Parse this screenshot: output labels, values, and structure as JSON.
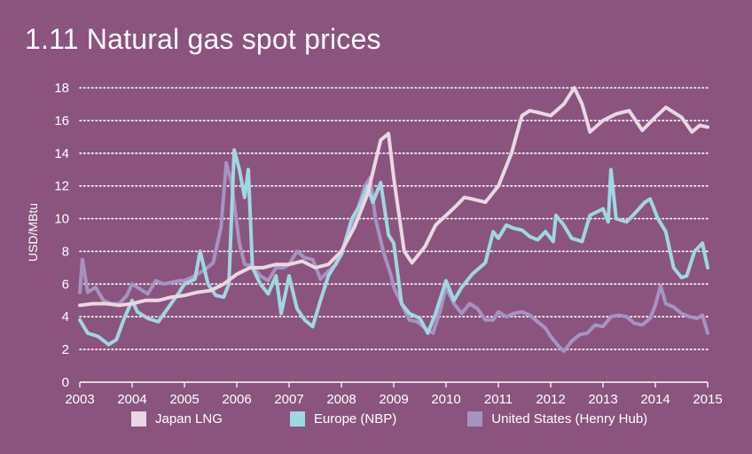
{
  "title": "1.11 Natural gas spot prices",
  "colors": {
    "background": "#8a547e",
    "japan": "#ead7e3",
    "europe": "#9ed8e2",
    "us": "#a793c2",
    "grid": "#ffffff"
  },
  "chart_data": {
    "type": "line",
    "title": "1.11 Natural gas spot prices",
    "xlabel": "",
    "ylabel": "USD/MBtu",
    "xlim": [
      2003,
      2015
    ],
    "ylim": [
      0,
      18
    ],
    "x_ticks": [
      "2003",
      "2004",
      "2005",
      "2006",
      "2007",
      "2008",
      "2009",
      "2010",
      "2011",
      "2012",
      "2013",
      "2014",
      "2015"
    ],
    "y_ticks": [
      "0",
      "2",
      "4",
      "6",
      "8",
      "10",
      "12",
      "14",
      "16",
      "18"
    ],
    "grid": "horizontal dotted",
    "legend_position": "bottom",
    "series": [
      {
        "name": "Japan LNG",
        "color": "#ead7e3",
        "points": [
          [
            2003.0,
            4.7
          ],
          [
            2003.25,
            4.8
          ],
          [
            2003.5,
            4.8
          ],
          [
            2003.75,
            4.7
          ],
          [
            2004.0,
            4.8
          ],
          [
            2004.25,
            5.0
          ],
          [
            2004.5,
            5.0
          ],
          [
            2004.75,
            5.2
          ],
          [
            2005.0,
            5.3
          ],
          [
            2005.25,
            5.5
          ],
          [
            2005.5,
            5.6
          ],
          [
            2005.75,
            6.0
          ],
          [
            2006.0,
            6.6
          ],
          [
            2006.25,
            7.0
          ],
          [
            2006.5,
            7.0
          ],
          [
            2006.75,
            7.2
          ],
          [
            2007.0,
            7.2
          ],
          [
            2007.25,
            7.4
          ],
          [
            2007.5,
            7.0
          ],
          [
            2007.75,
            7.2
          ],
          [
            2008.0,
            8.0
          ],
          [
            2008.25,
            9.5
          ],
          [
            2008.5,
            11.5
          ],
          [
            2008.75,
            14.8
          ],
          [
            2008.9,
            15.2
          ],
          [
            2009.0,
            12.5
          ],
          [
            2009.2,
            8.0
          ],
          [
            2009.35,
            7.3
          ],
          [
            2009.6,
            8.3
          ],
          [
            2009.8,
            9.6
          ],
          [
            2010.0,
            10.2
          ],
          [
            2010.2,
            10.8
          ],
          [
            2010.35,
            11.3
          ],
          [
            2010.5,
            11.2
          ],
          [
            2010.75,
            11.0
          ],
          [
            2011.0,
            12.0
          ],
          [
            2011.25,
            14.0
          ],
          [
            2011.45,
            16.3
          ],
          [
            2011.6,
            16.6
          ],
          [
            2011.75,
            16.5
          ],
          [
            2012.0,
            16.3
          ],
          [
            2012.25,
            17.0
          ],
          [
            2012.45,
            18.0
          ],
          [
            2012.6,
            17.0
          ],
          [
            2012.75,
            15.3
          ],
          [
            2013.0,
            16.0
          ],
          [
            2013.25,
            16.4
          ],
          [
            2013.5,
            16.6
          ],
          [
            2013.75,
            15.4
          ],
          [
            2014.0,
            16.2
          ],
          [
            2014.2,
            16.8
          ],
          [
            2014.5,
            16.2
          ],
          [
            2014.7,
            15.3
          ],
          [
            2014.85,
            15.7
          ],
          [
            2015.0,
            15.6
          ]
        ]
      },
      {
        "name": "Europe (NBP)",
        "color": "#9ed8e2",
        "points": [
          [
            2003.0,
            3.8
          ],
          [
            2003.15,
            3.0
          ],
          [
            2003.35,
            2.8
          ],
          [
            2003.55,
            2.3
          ],
          [
            2003.7,
            2.6
          ],
          [
            2003.85,
            3.9
          ],
          [
            2004.0,
            5.0
          ],
          [
            2004.1,
            4.3
          ],
          [
            2004.3,
            3.9
          ],
          [
            2004.5,
            3.7
          ],
          [
            2004.7,
            4.6
          ],
          [
            2004.9,
            5.5
          ],
          [
            2005.0,
            6.0
          ],
          [
            2005.2,
            6.3
          ],
          [
            2005.3,
            8.0
          ],
          [
            2005.45,
            6.0
          ],
          [
            2005.6,
            5.3
          ],
          [
            2005.75,
            5.2
          ],
          [
            2005.85,
            6.0
          ],
          [
            2005.95,
            14.2
          ],
          [
            2006.05,
            13.0
          ],
          [
            2006.15,
            11.3
          ],
          [
            2006.22,
            13.0
          ],
          [
            2006.3,
            7.0
          ],
          [
            2006.45,
            6.0
          ],
          [
            2006.6,
            5.4
          ],
          [
            2006.75,
            6.5
          ],
          [
            2006.85,
            4.2
          ],
          [
            2007.0,
            6.5
          ],
          [
            2007.15,
            4.5
          ],
          [
            2007.3,
            3.8
          ],
          [
            2007.45,
            3.4
          ],
          [
            2007.6,
            5.0
          ],
          [
            2007.75,
            6.5
          ],
          [
            2008.0,
            7.8
          ],
          [
            2008.2,
            10.0
          ],
          [
            2008.35,
            10.8
          ],
          [
            2008.5,
            12.0
          ],
          [
            2008.6,
            11.0
          ],
          [
            2008.75,
            12.2
          ],
          [
            2008.9,
            9.0
          ],
          [
            2009.0,
            8.5
          ],
          [
            2009.15,
            4.8
          ],
          [
            2009.3,
            4.2
          ],
          [
            2009.5,
            3.9
          ],
          [
            2009.65,
            3.0
          ],
          [
            2009.8,
            4.2
          ],
          [
            2010.0,
            6.2
          ],
          [
            2010.15,
            5.0
          ],
          [
            2010.3,
            5.8
          ],
          [
            2010.5,
            6.6
          ],
          [
            2010.75,
            7.3
          ],
          [
            2010.9,
            9.2
          ],
          [
            2011.0,
            8.8
          ],
          [
            2011.15,
            9.6
          ],
          [
            2011.3,
            9.4
          ],
          [
            2011.45,
            9.3
          ],
          [
            2011.6,
            8.9
          ],
          [
            2011.75,
            8.7
          ],
          [
            2011.9,
            9.2
          ],
          [
            2012.05,
            8.6
          ],
          [
            2012.1,
            10.2
          ],
          [
            2012.25,
            9.6
          ],
          [
            2012.4,
            8.8
          ],
          [
            2012.6,
            8.6
          ],
          [
            2012.75,
            10.2
          ],
          [
            2013.0,
            10.6
          ],
          [
            2013.1,
            9.8
          ],
          [
            2013.15,
            13.0
          ],
          [
            2013.25,
            10.0
          ],
          [
            2013.45,
            9.8
          ],
          [
            2013.6,
            10.3
          ],
          [
            2013.8,
            11.0
          ],
          [
            2013.9,
            11.2
          ],
          [
            2014.05,
            10.0
          ],
          [
            2014.2,
            9.2
          ],
          [
            2014.35,
            7.0
          ],
          [
            2014.5,
            6.4
          ],
          [
            2014.6,
            6.5
          ],
          [
            2014.75,
            8.0
          ],
          [
            2014.9,
            8.5
          ],
          [
            2015.0,
            7.0
          ]
        ]
      },
      {
        "name": "United States (Henry Hub)",
        "color": "#a793c2",
        "points": [
          [
            2003.0,
            5.5
          ],
          [
            2003.05,
            7.5
          ],
          [
            2003.15,
            5.5
          ],
          [
            2003.3,
            5.8
          ],
          [
            2003.45,
            5.0
          ],
          [
            2003.6,
            4.8
          ],
          [
            2003.75,
            4.8
          ],
          [
            2003.9,
            5.3
          ],
          [
            2004.0,
            6.0
          ],
          [
            2004.15,
            5.7
          ],
          [
            2004.3,
            5.4
          ],
          [
            2004.45,
            6.2
          ],
          [
            2004.6,
            6.0
          ],
          [
            2004.75,
            6.1
          ],
          [
            2004.9,
            6.2
          ],
          [
            2005.0,
            6.2
          ],
          [
            2005.2,
            6.5
          ],
          [
            2005.4,
            6.9
          ],
          [
            2005.55,
            7.3
          ],
          [
            2005.7,
            9.5
          ],
          [
            2005.8,
            13.4
          ],
          [
            2005.9,
            12.2
          ],
          [
            2006.05,
            8.5
          ],
          [
            2006.15,
            7.2
          ],
          [
            2006.3,
            7.1
          ],
          [
            2006.45,
            6.5
          ],
          [
            2006.6,
            6.2
          ],
          [
            2006.75,
            7.0
          ],
          [
            2006.9,
            7.0
          ],
          [
            2007.0,
            7.2
          ],
          [
            2007.15,
            8.0
          ],
          [
            2007.3,
            7.6
          ],
          [
            2007.45,
            7.5
          ],
          [
            2007.6,
            6.3
          ],
          [
            2007.75,
            6.8
          ],
          [
            2007.9,
            7.2
          ],
          [
            2008.0,
            8.0
          ],
          [
            2008.15,
            9.0
          ],
          [
            2008.3,
            10.5
          ],
          [
            2008.45,
            12.0
          ],
          [
            2008.55,
            12.5
          ],
          [
            2008.65,
            10.0
          ],
          [
            2008.8,
            8.0
          ],
          [
            2008.95,
            6.5
          ],
          [
            2009.0,
            5.8
          ],
          [
            2009.15,
            4.8
          ],
          [
            2009.3,
            3.8
          ],
          [
            2009.45,
            3.7
          ],
          [
            2009.6,
            3.3
          ],
          [
            2009.75,
            3.0
          ],
          [
            2009.9,
            4.5
          ],
          [
            2010.0,
            5.8
          ],
          [
            2010.15,
            4.8
          ],
          [
            2010.3,
            4.2
          ],
          [
            2010.45,
            4.8
          ],
          [
            2010.6,
            4.5
          ],
          [
            2010.75,
            3.8
          ],
          [
            2010.9,
            3.8
          ],
          [
            2011.0,
            4.3
          ],
          [
            2011.15,
            4.0
          ],
          [
            2011.3,
            4.2
          ],
          [
            2011.45,
            4.3
          ],
          [
            2011.6,
            4.1
          ],
          [
            2011.75,
            3.7
          ],
          [
            2011.9,
            3.3
          ],
          [
            2012.0,
            2.8
          ],
          [
            2012.15,
            2.2
          ],
          [
            2012.25,
            1.9
          ],
          [
            2012.4,
            2.5
          ],
          [
            2012.55,
            2.9
          ],
          [
            2012.7,
            3.0
          ],
          [
            2012.85,
            3.5
          ],
          [
            2013.0,
            3.4
          ],
          [
            2013.15,
            4.0
          ],
          [
            2013.3,
            4.1
          ],
          [
            2013.45,
            4.0
          ],
          [
            2013.6,
            3.6
          ],
          [
            2013.75,
            3.5
          ],
          [
            2013.9,
            3.9
          ],
          [
            2014.0,
            4.7
          ],
          [
            2014.1,
            5.9
          ],
          [
            2014.2,
            4.8
          ],
          [
            2014.35,
            4.6
          ],
          [
            2014.5,
            4.2
          ],
          [
            2014.65,
            4.0
          ],
          [
            2014.8,
            3.9
          ],
          [
            2014.9,
            4.1
          ],
          [
            2015.0,
            3.0
          ]
        ]
      }
    ]
  }
}
